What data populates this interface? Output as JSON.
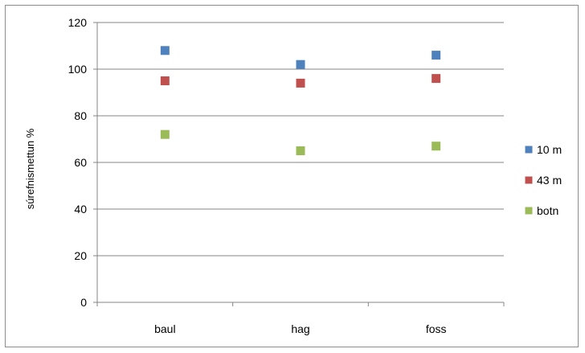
{
  "chart_data": {
    "type": "scatter",
    "title": "",
    "xlabel": "",
    "ylabel": "súrefnismettun %",
    "categories": [
      "baul",
      "hag",
      "foss"
    ],
    "ylim": [
      0,
      120
    ],
    "yticks": [
      0,
      20,
      40,
      60,
      80,
      100,
      120
    ],
    "grid": true,
    "legend_position": "right",
    "series": [
      {
        "name": "10 m",
        "color": "#4f81bd",
        "values": [
          108,
          102,
          106
        ]
      },
      {
        "name": "43 m",
        "color": "#c0504d",
        "values": [
          95,
          94,
          96
        ]
      },
      {
        "name": "botn",
        "color": "#9bbb59",
        "values": [
          72,
          65,
          67
        ]
      }
    ]
  }
}
